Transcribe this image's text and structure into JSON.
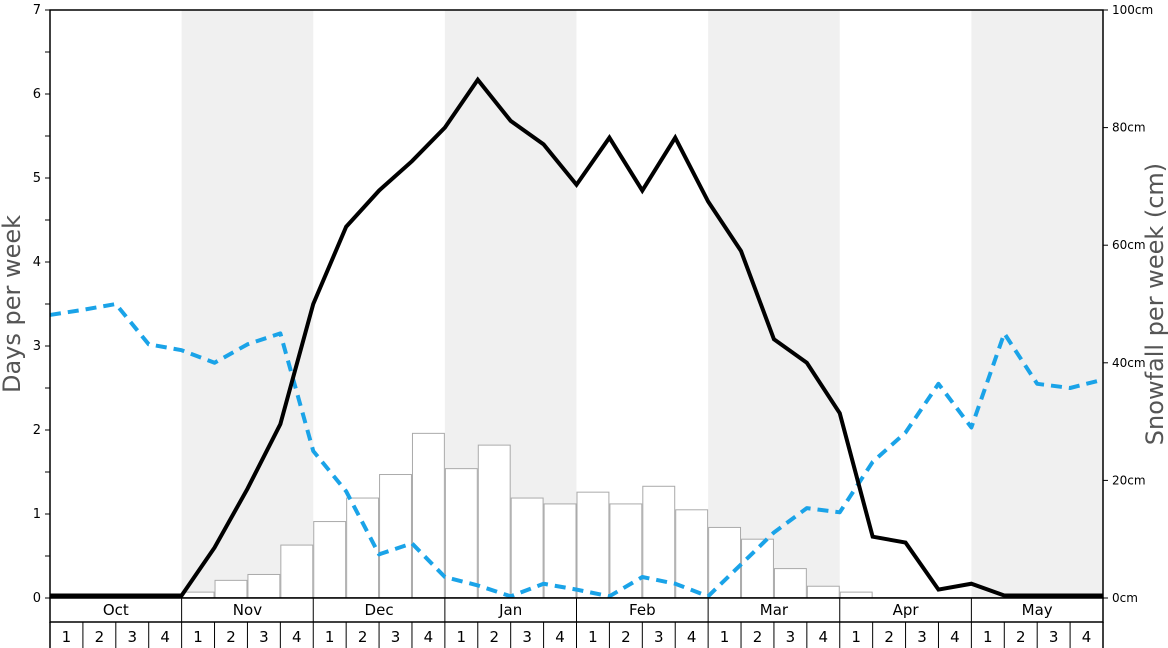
{
  "chart_data": {
    "type": "bar+line",
    "ylabel_left": "Days per week",
    "ylabel_right": "Snowfall per week (cm)",
    "ylim_left": [
      0,
      7
    ],
    "yticks_left": [
      "0",
      "1",
      "2",
      "3",
      "4",
      "5",
      "6",
      "7"
    ],
    "ylim_right": [
      0,
      100
    ],
    "yticks_right": [
      "0cm",
      "20cm",
      "40cm",
      "60cm",
      "80cm",
      "100cm"
    ],
    "months": [
      "Oct",
      "Nov",
      "Dec",
      "Jan",
      "Feb",
      "Mar",
      "Apr",
      "May"
    ],
    "week_labels": [
      "1",
      "2",
      "3",
      "4"
    ],
    "shaded_months": [
      "Nov",
      "Jan",
      "Mar",
      "May"
    ],
    "colors": {
      "bars_fill": "#ffffff",
      "bars_stroke": "#aaaaaa",
      "solid_line": "#000000",
      "dashed_line": "#1aa3e8",
      "shade": "#f0f0f0",
      "frame": "#000000"
    },
    "series": [
      {
        "kind": "bar",
        "axis": "right",
        "unit": "cm",
        "values": [
          0,
          0,
          0,
          0,
          1,
          3,
          4,
          9,
          13,
          17,
          21,
          28,
          22,
          26,
          17,
          16,
          18,
          16,
          19,
          15,
          12,
          10,
          5,
          2,
          1,
          0,
          0,
          0,
          0,
          0,
          0,
          0
        ]
      },
      {
        "kind": "line",
        "style": "solid",
        "axis": "left",
        "values": [
          0.03,
          0.03,
          0.03,
          0.03,
          0.03,
          0.6,
          1.3,
          2.07,
          3.5,
          4.42,
          4.85,
          5.2,
          5.6,
          6.17,
          5.68,
          5.4,
          4.92,
          5.48,
          4.85,
          5.48,
          4.72,
          4.13,
          3.08,
          2.8,
          2.2,
          0.73,
          0.66,
          0.1,
          0.17,
          0.03,
          0.03,
          0.03,
          0.03
        ]
      },
      {
        "kind": "line",
        "style": "dashed",
        "axis": "left",
        "values": [
          3.37,
          3.43,
          3.5,
          3.02,
          2.95,
          2.8,
          3.02,
          3.15,
          1.75,
          1.27,
          0.52,
          0.65,
          0.25,
          0.15,
          0.02,
          0.17,
          0.1,
          0.02,
          0.25,
          0.17,
          0.02,
          0.4,
          0.78,
          1.07,
          1.02,
          1.62,
          1.97,
          2.55,
          2.03,
          3.15,
          2.55,
          2.5,
          2.6
        ]
      }
    ]
  }
}
